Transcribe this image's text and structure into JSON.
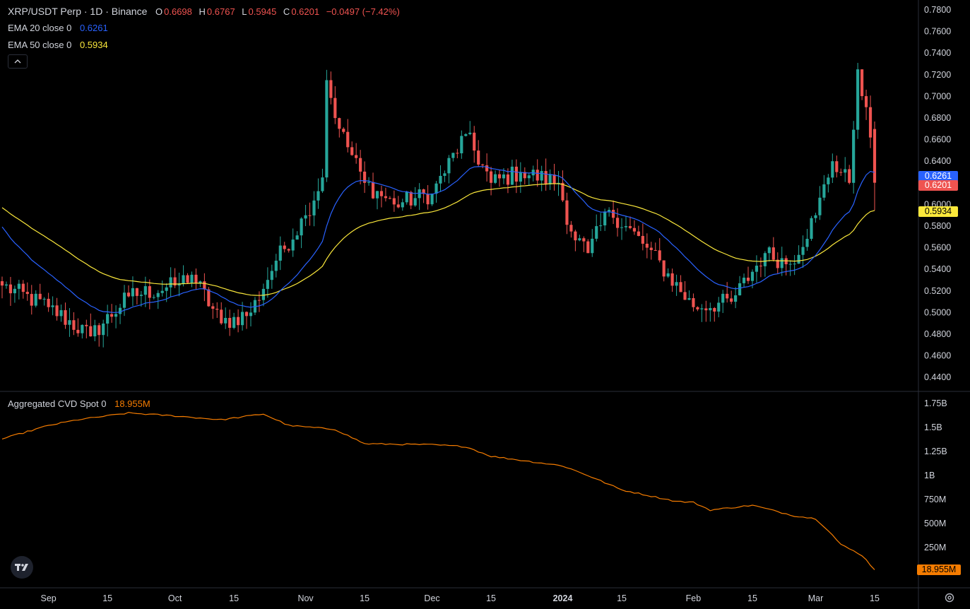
{
  "header": {
    "symbol": "XRP/USDT Perp · 1D · Binance",
    "o_label": "O",
    "o_value": "0.6698",
    "h_label": "H",
    "h_value": "0.6767",
    "l_label": "L",
    "l_value": "0.5945",
    "c_label": "C",
    "c_value": "0.6201",
    "change": "−0.0497 (−7.42%)",
    "ema20_label": "EMA 20 close 0",
    "ema20_value": "0.6261",
    "ema50_label": "EMA 50 close 0",
    "ema50_value": "0.5934",
    "cvd_label": "Aggregated CVD Spot 0",
    "cvd_value": "18.955M"
  },
  "colors": {
    "background": "#000000",
    "up": "#26a69a",
    "down": "#ef5350",
    "ema20": "#2962ff",
    "ema50": "#fbe83b",
    "cvd": "#f57c00",
    "text": "#d1d4dc",
    "grid": "#1e222d"
  },
  "badges": {
    "ema20": "0.6261",
    "close": "0.6201",
    "ema50": "0.5934",
    "cvd": "18.955M"
  },
  "chart_data": [
    {
      "type": "candlestick",
      "title": "XRP/USDT Perp · 1D · Binance",
      "x_ticks": [
        "Sep",
        "15",
        "Oct",
        "15",
        "Nov",
        "15",
        "Dec",
        "15",
        "2024",
        "15",
        "Feb",
        "15",
        "Mar",
        "15"
      ],
      "y_ticks": [
        "0.7800",
        "0.7600",
        "0.7400",
        "0.7200",
        "0.7000",
        "0.6800",
        "0.6600",
        "0.6400",
        "0.6200",
        "0.6000",
        "0.5800",
        "0.5600",
        "0.5400",
        "0.5200",
        "0.5000",
        "0.4800",
        "0.4600",
        "0.4400"
      ],
      "ylim": [
        0.435,
        0.785
      ],
      "keypoints": [
        {
          "date": "2023-08-21",
          "close": 0.525
        },
        {
          "date": "2023-09-01",
          "close": 0.505
        },
        {
          "date": "2023-09-11",
          "close": 0.478
        },
        {
          "date": "2023-09-20",
          "close": 0.515
        },
        {
          "date": "2023-10-01",
          "close": 0.525
        },
        {
          "date": "2023-10-05",
          "close": 0.535
        },
        {
          "date": "2023-10-12",
          "close": 0.49
        },
        {
          "date": "2023-10-19",
          "close": 0.5
        },
        {
          "date": "2023-10-25",
          "close": 0.548
        },
        {
          "date": "2023-11-01",
          "close": 0.59
        },
        {
          "date": "2023-11-05",
          "close": 0.625
        },
        {
          "date": "2023-11-06",
          "close": 0.715
        },
        {
          "date": "2023-11-09",
          "close": 0.67
        },
        {
          "date": "2023-11-15",
          "close": 0.62
        },
        {
          "date": "2023-11-22",
          "close": 0.6
        },
        {
          "date": "2023-12-01",
          "close": 0.61
        },
        {
          "date": "2023-12-09",
          "close": 0.665
        },
        {
          "date": "2023-12-15",
          "close": 0.62
        },
        {
          "date": "2023-12-22",
          "close": 0.63
        },
        {
          "date": "2023-12-31",
          "close": 0.62
        },
        {
          "date": "2024-01-03",
          "close": 0.575
        },
        {
          "date": "2024-01-07",
          "close": 0.555
        },
        {
          "date": "2024-01-12",
          "close": 0.595
        },
        {
          "date": "2024-01-21",
          "close": 0.56
        },
        {
          "date": "2024-02-01",
          "close": 0.505
        },
        {
          "date": "2024-02-10",
          "close": 0.51
        },
        {
          "date": "2024-02-18",
          "close": 0.555
        },
        {
          "date": "2024-02-24",
          "close": 0.545
        },
        {
          "date": "2024-03-01",
          "close": 0.59
        },
        {
          "date": "2024-03-05",
          "close": 0.64
        },
        {
          "date": "2024-03-09",
          "close": 0.62
        },
        {
          "date": "2024-03-11",
          "close": 0.725
        },
        {
          "date": "2024-03-13",
          "close": 0.69
        },
        {
          "date": "2024-03-15",
          "close": 0.62
        }
      ],
      "series": [
        {
          "name": "EMA 20 close 0",
          "last": 0.6261
        },
        {
          "name": "EMA 50 close 0",
          "last": 0.5934
        }
      ],
      "last_ohlc": {
        "open": 0.6698,
        "high": 0.6767,
        "low": 0.5945,
        "close": 0.6201
      }
    },
    {
      "type": "line",
      "title": "Aggregated CVD Spot 0",
      "y_ticks": [
        "1.75B",
        "1.5B",
        "1.25B",
        "1B",
        "750M",
        "500M",
        "250M"
      ],
      "ylim": [
        0,
        1.8
      ],
      "series": [
        {
          "name": "Aggregated CVD Spot 0",
          "points": [
            {
              "date": "2023-08-21",
              "value": 1.38
            },
            {
              "date": "2023-09-01",
              "value": 1.52
            },
            {
              "date": "2023-09-08",
              "value": 1.58
            },
            {
              "date": "2023-09-20",
              "value": 1.65
            },
            {
              "date": "2023-10-01",
              "value": 1.62
            },
            {
              "date": "2023-10-12",
              "value": 1.58
            },
            {
              "date": "2023-10-22",
              "value": 1.64
            },
            {
              "date": "2023-10-28",
              "value": 1.52
            },
            {
              "date": "2023-11-08",
              "value": 1.48
            },
            {
              "date": "2023-11-15",
              "value": 1.33
            },
            {
              "date": "2023-12-01",
              "value": 1.32
            },
            {
              "date": "2023-12-09",
              "value": 1.3
            },
            {
              "date": "2023-12-15",
              "value": 1.2
            },
            {
              "date": "2024-01-01",
              "value": 1.1
            },
            {
              "date": "2024-01-07",
              "value": 1.0
            },
            {
              "date": "2024-01-15",
              "value": 0.85
            },
            {
              "date": "2024-01-28",
              "value": 0.73
            },
            {
              "date": "2024-02-01",
              "value": 0.72
            },
            {
              "date": "2024-02-05",
              "value": 0.64
            },
            {
              "date": "2024-02-15",
              "value": 0.69
            },
            {
              "date": "2024-02-25",
              "value": 0.58
            },
            {
              "date": "2024-03-01",
              "value": 0.55
            },
            {
              "date": "2024-03-04",
              "value": 0.43
            },
            {
              "date": "2024-03-07",
              "value": 0.28
            },
            {
              "date": "2024-03-12",
              "value": 0.17
            },
            {
              "date": "2024-03-15",
              "value": 0.019
            }
          ]
        }
      ]
    }
  ]
}
